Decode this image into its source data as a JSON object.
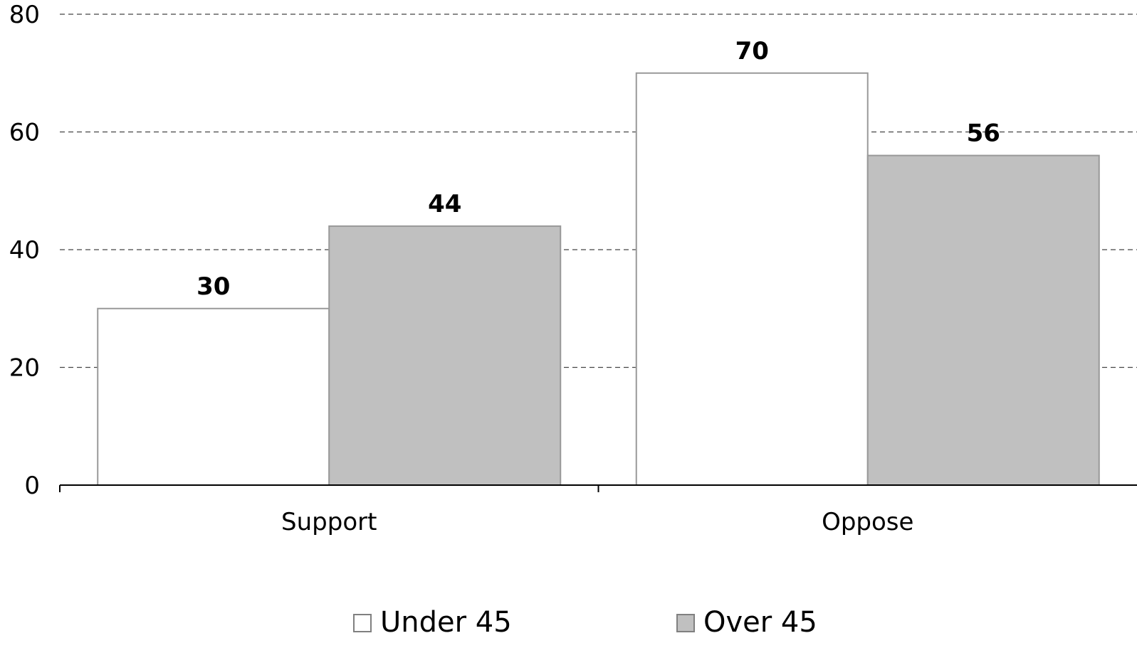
{
  "chart_data": {
    "type": "bar",
    "categories": [
      "Support",
      "Oppose"
    ],
    "series": [
      {
        "name": "Under 45",
        "values": [
          30,
          70
        ],
        "color": "#ffffff",
        "stroke": "#999999"
      },
      {
        "name": "Over 45",
        "values": [
          44,
          56
        ],
        "color": "#c0c0c0",
        "stroke": "#999999"
      }
    ],
    "ylim": [
      0,
      80
    ],
    "yticks": [
      0,
      20,
      40,
      60,
      80
    ],
    "grid": true,
    "grid_style": "dashed",
    "legend_position": "bottom",
    "data_labels": true
  }
}
